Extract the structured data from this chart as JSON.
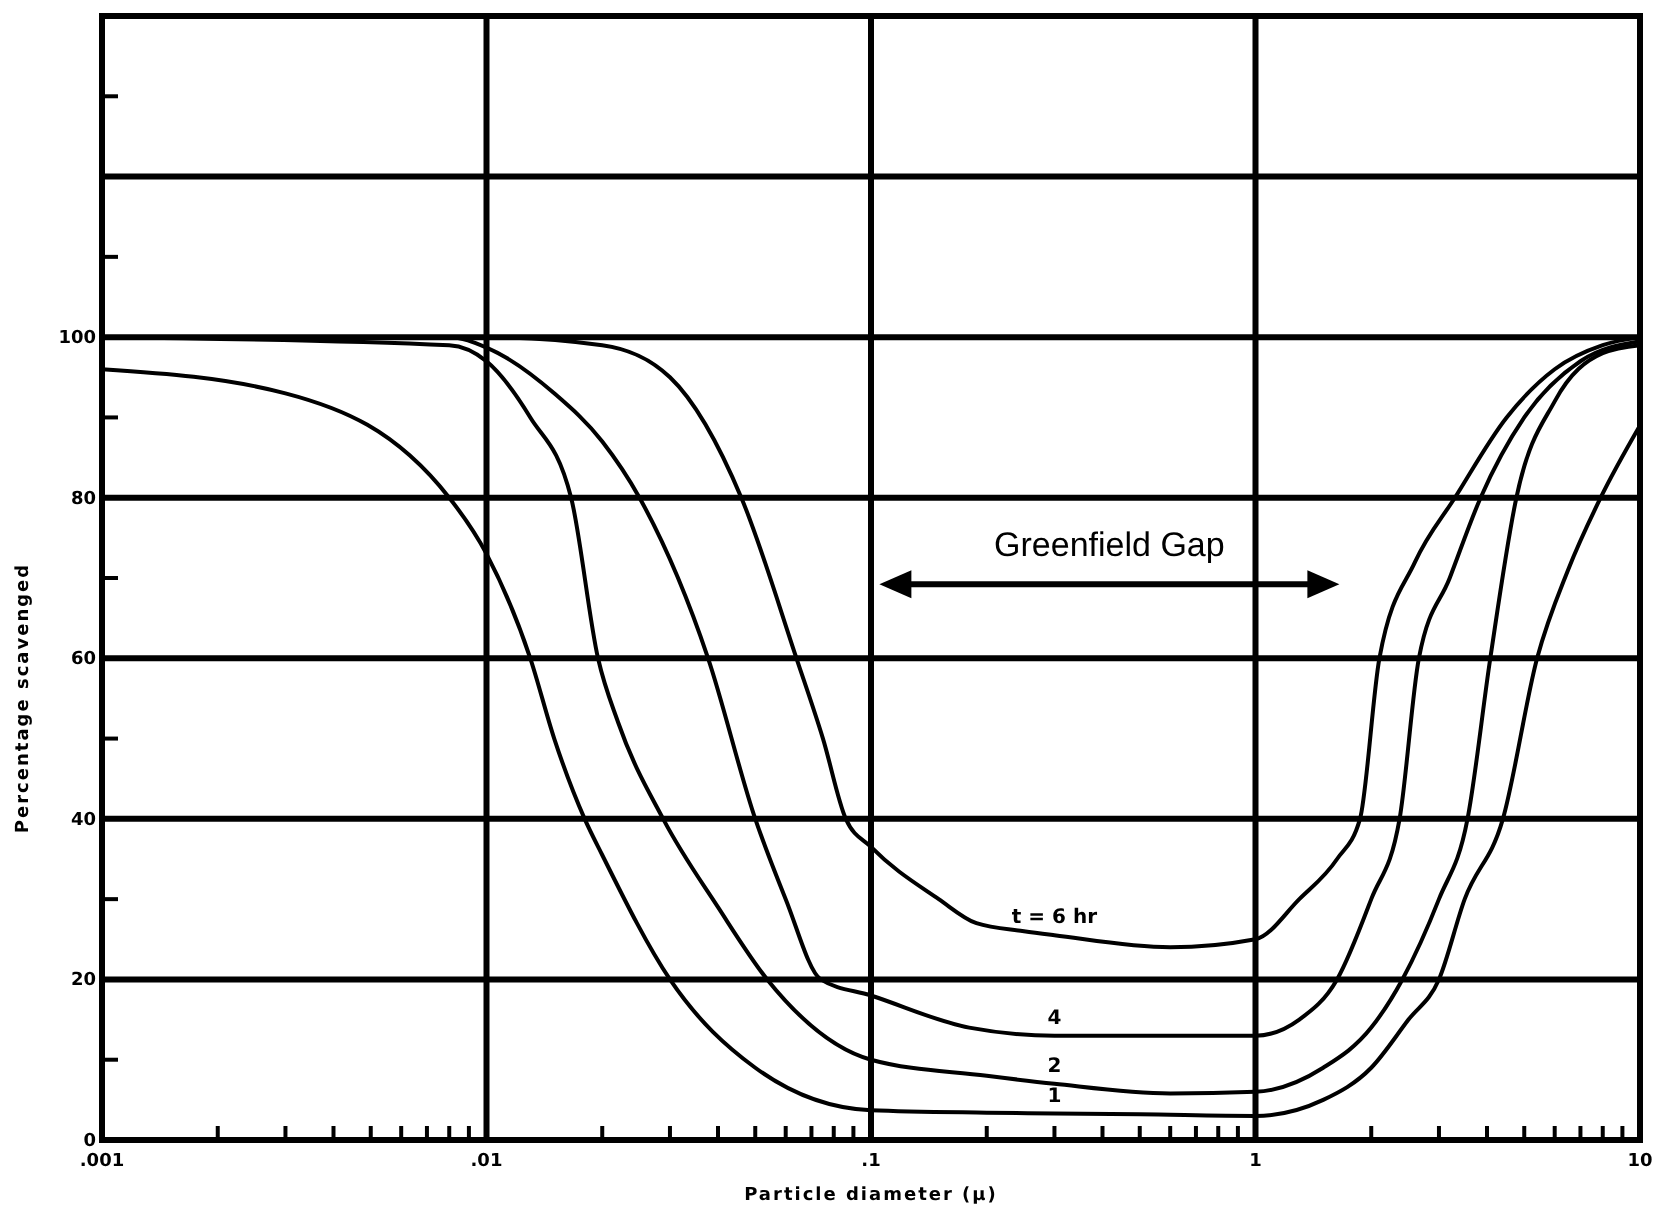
{
  "chart_data": {
    "type": "line",
    "xlabel": "Particle diameter (μ)",
    "ylabel": "Percentage scavenged",
    "log": "x",
    "grid": true,
    "legend": false,
    "marker": "none",
    "line_style": "solid",
    "xlim": [
      0.001,
      10
    ],
    "ylim": [
      0,
      140
    ],
    "xticks": [
      {
        "value": 0.001,
        "label": ".001"
      },
      {
        "value": 0.002,
        "label": null
      },
      {
        "value": 0.003,
        "label": null
      },
      {
        "value": 0.004,
        "label": null
      },
      {
        "value": 0.005,
        "label": null
      },
      {
        "value": 0.006,
        "label": null
      },
      {
        "value": 0.007,
        "label": null
      },
      {
        "value": 0.008,
        "label": null
      },
      {
        "value": 0.009,
        "label": null
      },
      {
        "value": 0.01,
        "label": ".01"
      },
      {
        "value": 0.02,
        "label": null
      },
      {
        "value": 0.03,
        "label": null
      },
      {
        "value": 0.04,
        "label": null
      },
      {
        "value": 0.05,
        "label": null
      },
      {
        "value": 0.06,
        "label": null
      },
      {
        "value": 0.07,
        "label": null
      },
      {
        "value": 0.08,
        "label": null
      },
      {
        "value": 0.09,
        "label": null
      },
      {
        "value": 0.1,
        "label": ".1"
      },
      {
        "value": 0.2,
        "label": null
      },
      {
        "value": 0.3,
        "label": null
      },
      {
        "value": 0.4,
        "label": null
      },
      {
        "value": 0.5,
        "label": null
      },
      {
        "value": 0.6,
        "label": null
      },
      {
        "value": 0.7,
        "label": null
      },
      {
        "value": 0.8,
        "label": null
      },
      {
        "value": 0.9,
        "label": null
      },
      {
        "value": 1,
        "label": "1"
      },
      {
        "value": 2,
        "label": null
      },
      {
        "value": 3,
        "label": null
      },
      {
        "value": 4,
        "label": null
      },
      {
        "value": 5,
        "label": null
      },
      {
        "value": 6,
        "label": null
      },
      {
        "value": 7,
        "label": null
      },
      {
        "value": 8,
        "label": null
      },
      {
        "value": 9,
        "label": null
      },
      {
        "value": 10,
        "label": "10"
      }
    ],
    "yticks": [
      0,
      {
        "value": 10,
        "label": null
      },
      20,
      {
        "value": 30,
        "label": null
      },
      40,
      {
        "value": 50,
        "label": null
      },
      60,
      {
        "value": 70,
        "label": null
      },
      80,
      {
        "value": 90,
        "label": null
      },
      100,
      {
        "value": 110,
        "label": null
      },
      {
        "value": 120,
        "label": null
      },
      {
        "value": 130,
        "label": null
      },
      {
        "value": 140,
        "label": null
      }
    ],
    "series": [
      {
        "name": "t = 6 hr",
        "color": "#000000",
        "x": [
          0.001,
          0.01,
          0.02,
          0.03,
          0.046,
          0.064,
          0.075,
          0.086,
          0.1,
          0.15,
          0.188,
          0.25,
          0.3,
          0.6,
          1,
          1.3,
          1.63,
          1.87,
          2.1,
          2.6,
          3.3,
          4.5,
          6,
          8,
          10
        ],
        "values": [
          100,
          100,
          99,
          95,
          80,
          60,
          50,
          40,
          36.5,
          30,
          27,
          26,
          25.5,
          24,
          25,
          30,
          35,
          40,
          60,
          72,
          80,
          90,
          96,
          99,
          100
        ]
      },
      {
        "name": "4",
        "color": "#000000",
        "x": [
          0.001,
          0.008,
          0.01,
          0.015,
          0.02,
          0.025,
          0.0377,
          0.05,
          0.06,
          0.074,
          0.1,
          0.18,
          0.3,
          0.5,
          1,
          1.3,
          1.63,
          2,
          2.37,
          2.66,
          3.2,
          3.85,
          5,
          7,
          10
        ],
        "values": [
          100,
          100,
          98.7,
          93,
          87,
          80,
          60,
          40,
          30,
          20,
          18,
          14,
          13,
          13,
          13,
          15,
          20,
          30,
          40,
          60,
          70,
          80,
          90,
          97,
          99.5
        ]
      },
      {
        "name": "2",
        "color": "#000000",
        "x": [
          0.001,
          0.008,
          0.01,
          0.013,
          0.0166,
          0.0195,
          0.022,
          0.0288,
          0.04,
          0.0537,
          0.1,
          0.2,
          0.3,
          0.6,
          1,
          1.5,
          2,
          2.41,
          3,
          3.56,
          4.08,
          4.77,
          6,
          8,
          10
        ],
        "values": [
          100,
          99,
          97,
          90,
          80,
          60,
          52,
          40,
          29,
          20,
          10,
          8,
          7,
          5.8,
          6,
          9,
          14,
          20,
          30,
          40,
          60,
          80,
          92,
          98,
          99
        ]
      },
      {
        "name": "1",
        "color": "#000000",
        "x": [
          0.001,
          0.003,
          0.008,
          0.01,
          0.013,
          0.015,
          0.018,
          0.02,
          0.03,
          0.05,
          0.1,
          0.2,
          0.3,
          0.5,
          1,
          1.5,
          2,
          2.5,
          3,
          3.5,
          4.4,
          5.4,
          6.5,
          7.9,
          10
        ],
        "values": [
          96,
          93,
          80,
          73,
          60,
          50,
          40,
          35.5,
          20,
          9,
          3.7,
          3.4,
          3.3,
          3.2,
          3,
          5,
          9,
          15,
          20,
          30,
          40,
          60,
          71,
          80,
          89
        ]
      }
    ],
    "annotations": [
      "Greenfield Gap"
    ]
  }
}
